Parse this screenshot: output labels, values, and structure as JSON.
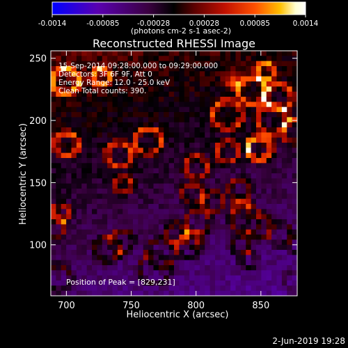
{
  "chart_data": {
    "type": "heatmap",
    "title": "Reconstructed RHESSI Image",
    "xlabel": "Heliocentric X (arcsec)",
    "ylabel": "Heliocentric Y (arcsec)",
    "xlim": [
      688,
      878
    ],
    "ylim": [
      59,
      256
    ],
    "xticks": [
      700,
      750,
      800,
      850
    ],
    "yticks": [
      100,
      150,
      200,
      250
    ],
    "colorbar": {
      "label": "(photons cm-2 s-1 asec-2)",
      "range": [
        -0.0014,
        0.0014
      ],
      "ticks": [
        "-0.0014",
        "-0.00085",
        "-0.00028",
        "0.00028",
        "0.00085",
        "0.0014"
      ],
      "colors": [
        "#0000ff",
        "#5a00b0",
        "#3a0040",
        "#000000",
        "#5a0000",
        "#c01000",
        "#ff5000",
        "#ffc000",
        "#ffffd0",
        "#ffffff"
      ]
    },
    "annotations": [
      "15-Sep-2014 09:28:00.000 to 09:29:00.000",
      "Detectors: 3F 6F 9F, Att 0",
      "Energy Range: 12.0 - 25.0 keV",
      "Clean     Total counts: 390."
    ],
    "peak": {
      "label": "Position of Peak = [829,231]",
      "x": 829,
      "y": 231
    },
    "grid": false
  },
  "footer": {
    "date": "2-Jun-2019 19:28"
  }
}
